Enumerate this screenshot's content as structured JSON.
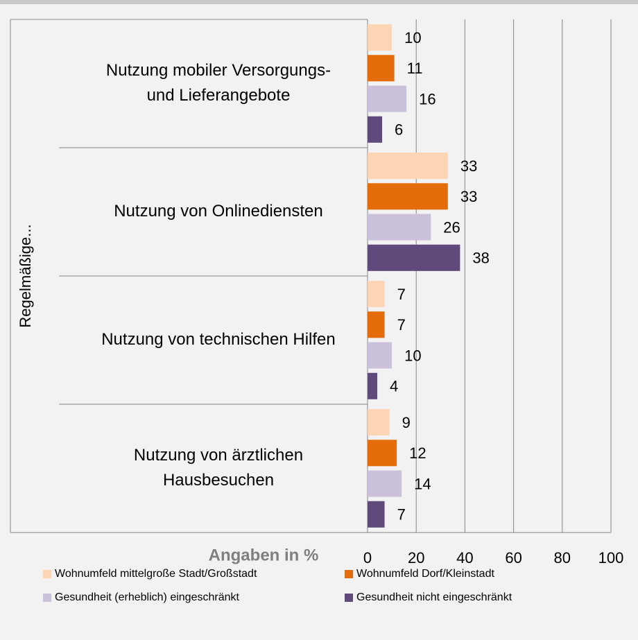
{
  "chart_data": {
    "type": "bar",
    "orientation": "horizontal",
    "y_axis_label": "Regelmäßige...",
    "x_axis_label": "Angaben in %",
    "categories": [
      [
        "Nutzung mobiler Versorgungs-",
        "und Lieferangebote"
      ],
      [
        "Nutzung von Onlinediensten"
      ],
      [
        "Nutzung von technischen Hilfen"
      ],
      [
        "Nutzung von ärztlichen",
        "Hausbesuchen"
      ]
    ],
    "series": [
      {
        "name": "Wohnumfeld mittelgroße Stadt/Großstadt",
        "color": "#fcd5b5",
        "values": [
          10,
          33,
          7,
          9
        ]
      },
      {
        "name": "Wohnumfeld Dorf/Kleinstadt",
        "color": "#e46c0a",
        "values": [
          11,
          33,
          7,
          12
        ]
      },
      {
        "name": "Gesundheit (erheblich) eingeschränkt",
        "color": "#ccc1da",
        "values": [
          16,
          26,
          10,
          14
        ]
      },
      {
        "name": "Gesundheit nicht eingeschränkt",
        "color": "#604a7b",
        "values": [
          6,
          38,
          4,
          7
        ]
      }
    ],
    "xlim": [
      0,
      100
    ],
    "xticks": [
      0,
      20,
      40,
      60,
      80,
      100
    ],
    "grid": true,
    "legend": "bottom"
  }
}
